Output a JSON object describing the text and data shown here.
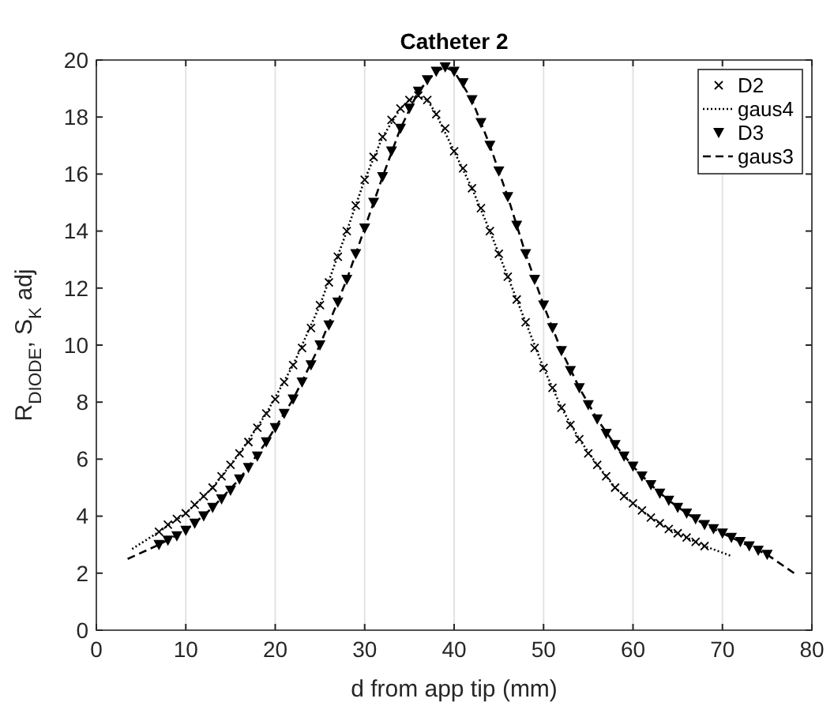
{
  "chart_data": {
    "type": "line",
    "title": "Catheter 2",
    "xlabel": "d from app tip (mm)",
    "ylabel": "R$_{DIODE}$, S$_{K}$ adj",
    "xlim": [
      0,
      80
    ],
    "ylim": [
      0,
      20
    ],
    "xticks": [
      0,
      10,
      20,
      30,
      40,
      50,
      60,
      70,
      80
    ],
    "yticks": [
      0,
      2,
      4,
      6,
      8,
      10,
      12,
      14,
      16,
      18,
      20
    ],
    "grid": "x",
    "legend": "top right",
    "series": [
      {
        "name": "D2",
        "type": "scatter",
        "marker": "cross",
        "color": "#000000",
        "x": [
          7,
          8,
          9,
          10,
          11,
          12,
          13,
          14,
          15,
          16,
          17,
          18,
          19,
          20,
          21,
          22,
          23,
          24,
          25,
          26,
          27,
          28,
          29,
          30,
          31,
          32,
          33,
          34,
          35,
          36,
          37,
          38,
          39,
          40,
          41,
          42,
          43,
          44,
          45,
          46,
          47,
          48,
          49,
          50,
          51,
          52,
          53,
          54,
          55,
          56,
          57,
          58,
          59,
          60,
          61,
          62,
          63,
          64,
          65,
          66,
          67,
          68
        ],
        "values": [
          3.45,
          3.7,
          3.9,
          4.1,
          4.4,
          4.7,
          5.0,
          5.4,
          5.8,
          6.2,
          6.6,
          7.1,
          7.6,
          8.1,
          8.7,
          9.3,
          9.9,
          10.6,
          11.4,
          12.2,
          13.1,
          14.0,
          14.9,
          15.8,
          16.6,
          17.3,
          17.9,
          18.3,
          18.6,
          18.75,
          18.6,
          18.1,
          17.6,
          16.8,
          16.2,
          15.5,
          14.8,
          14.0,
          13.2,
          12.4,
          11.6,
          10.8,
          9.9,
          9.2,
          8.5,
          7.8,
          7.2,
          6.7,
          6.2,
          5.8,
          5.4,
          5.0,
          4.7,
          4.45,
          4.2,
          3.95,
          3.75,
          3.55,
          3.4,
          3.25,
          3.1,
          2.95
        ]
      },
      {
        "name": "gaus4",
        "marker": "none",
        "line_style": "dotted",
        "color": "#000000",
        "x": [
          4,
          7,
          10,
          13,
          16,
          19,
          22,
          25,
          28,
          30,
          32,
          34,
          35,
          36,
          37,
          38,
          40,
          42,
          44,
          46,
          48,
          50,
          52,
          54,
          56,
          58,
          60,
          62,
          64,
          66,
          68,
          71
        ],
        "values": [
          2.85,
          3.45,
          4.1,
          5.0,
          6.2,
          7.6,
          9.3,
          11.4,
          14.0,
          15.8,
          17.3,
          18.3,
          18.6,
          18.75,
          18.6,
          18.1,
          16.8,
          15.5,
          14.0,
          12.4,
          10.8,
          9.2,
          7.8,
          6.7,
          5.8,
          5.0,
          4.45,
          3.95,
          3.55,
          3.25,
          2.95,
          2.6
        ]
      },
      {
        "name": "D3",
        "type": "scatter",
        "marker": "triangle",
        "color": "#000000",
        "x": [
          7,
          8,
          9,
          10,
          11,
          12,
          13,
          14,
          15,
          16,
          17,
          18,
          19,
          20,
          21,
          22,
          23,
          24,
          25,
          26,
          27,
          28,
          29,
          30,
          31,
          32,
          33,
          34,
          35,
          36,
          37,
          38,
          39,
          40,
          41,
          42,
          43,
          44,
          45,
          46,
          47,
          48,
          49,
          50,
          51,
          52,
          53,
          54,
          55,
          56,
          57,
          58,
          59,
          60,
          61,
          62,
          63,
          64,
          65,
          66,
          67,
          68,
          69,
          70,
          71,
          72,
          73,
          74,
          75
        ],
        "values": [
          3.0,
          3.15,
          3.3,
          3.5,
          3.75,
          4.0,
          4.3,
          4.6,
          4.9,
          5.3,
          5.7,
          6.1,
          6.6,
          7.1,
          7.6,
          8.1,
          8.7,
          9.3,
          10.0,
          10.7,
          11.5,
          12.3,
          13.2,
          14.1,
          15.0,
          15.9,
          16.8,
          17.6,
          18.3,
          18.9,
          19.3,
          19.6,
          19.75,
          19.6,
          19.2,
          18.6,
          17.8,
          17.0,
          16.1,
          15.2,
          14.2,
          13.2,
          12.3,
          11.4,
          10.6,
          9.8,
          9.1,
          8.5,
          7.9,
          7.4,
          6.9,
          6.5,
          6.1,
          5.75,
          5.4,
          5.1,
          4.8,
          4.55,
          4.3,
          4.1,
          3.9,
          3.7,
          3.55,
          3.4,
          3.25,
          3.1,
          2.95,
          2.8,
          2.65
        ]
      },
      {
        "name": "gaus3",
        "marker": "none",
        "line_style": "dashed",
        "color": "#000000",
        "x": [
          3.5,
          7,
          10,
          13,
          16,
          19,
          22,
          25,
          28,
          30,
          32,
          34,
          36,
          38,
          39,
          40,
          42,
          44,
          46,
          48,
          50,
          52,
          54,
          56,
          58,
          60,
          62,
          64,
          66,
          68,
          70,
          72,
          75,
          78
        ],
        "values": [
          2.5,
          3.0,
          3.5,
          4.3,
          5.3,
          6.6,
          8.1,
          10.0,
          12.3,
          14.1,
          15.9,
          17.6,
          18.9,
          19.6,
          19.75,
          19.6,
          18.6,
          17.0,
          15.2,
          13.2,
          11.4,
          9.8,
          8.5,
          7.4,
          6.5,
          5.75,
          5.1,
          4.55,
          4.1,
          3.7,
          3.4,
          3.1,
          2.65,
          2.0
        ]
      }
    ]
  }
}
